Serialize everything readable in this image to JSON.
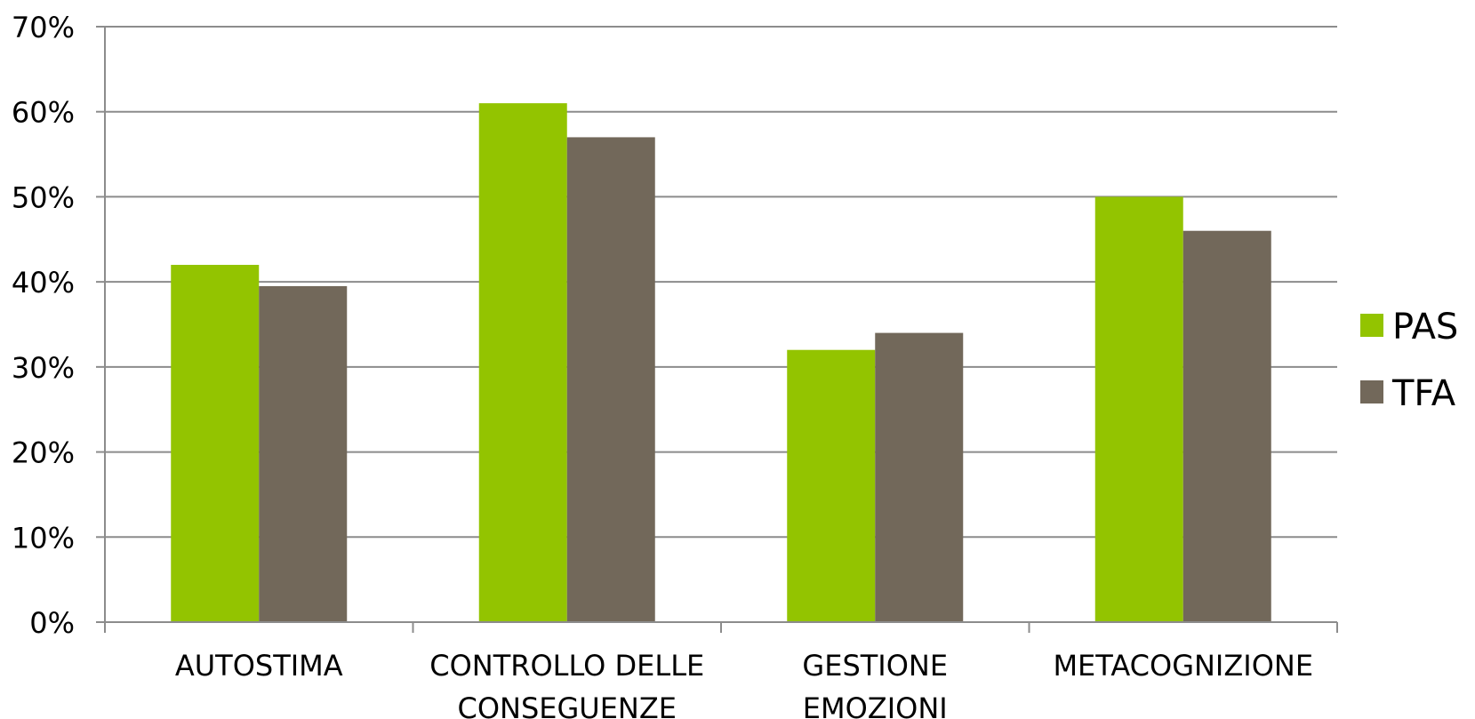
{
  "chart_data": {
    "type": "bar",
    "title": "",
    "xlabel": "",
    "ylabel": "",
    "categories": [
      [
        "AUTOSTIMA"
      ],
      [
        "CONTROLLO DELLE",
        "CONSEGUENZE"
      ],
      [
        "GESTIONE",
        "EMOZIONI"
      ],
      [
        "METACOGNIZIONE"
      ]
    ],
    "series": [
      {
        "name": "PAS",
        "color": "#93c400",
        "values": [
          42,
          61,
          32,
          50
        ]
      },
      {
        "name": "TFA",
        "color": "#72685a",
        "values": [
          39.5,
          57,
          34,
          46
        ]
      }
    ],
    "ylim": [
      0,
      70
    ],
    "yticks": [
      0,
      10,
      20,
      30,
      40,
      50,
      60,
      70
    ],
    "ytick_format": "{v}%",
    "grid": true,
    "legend_position": "right"
  }
}
